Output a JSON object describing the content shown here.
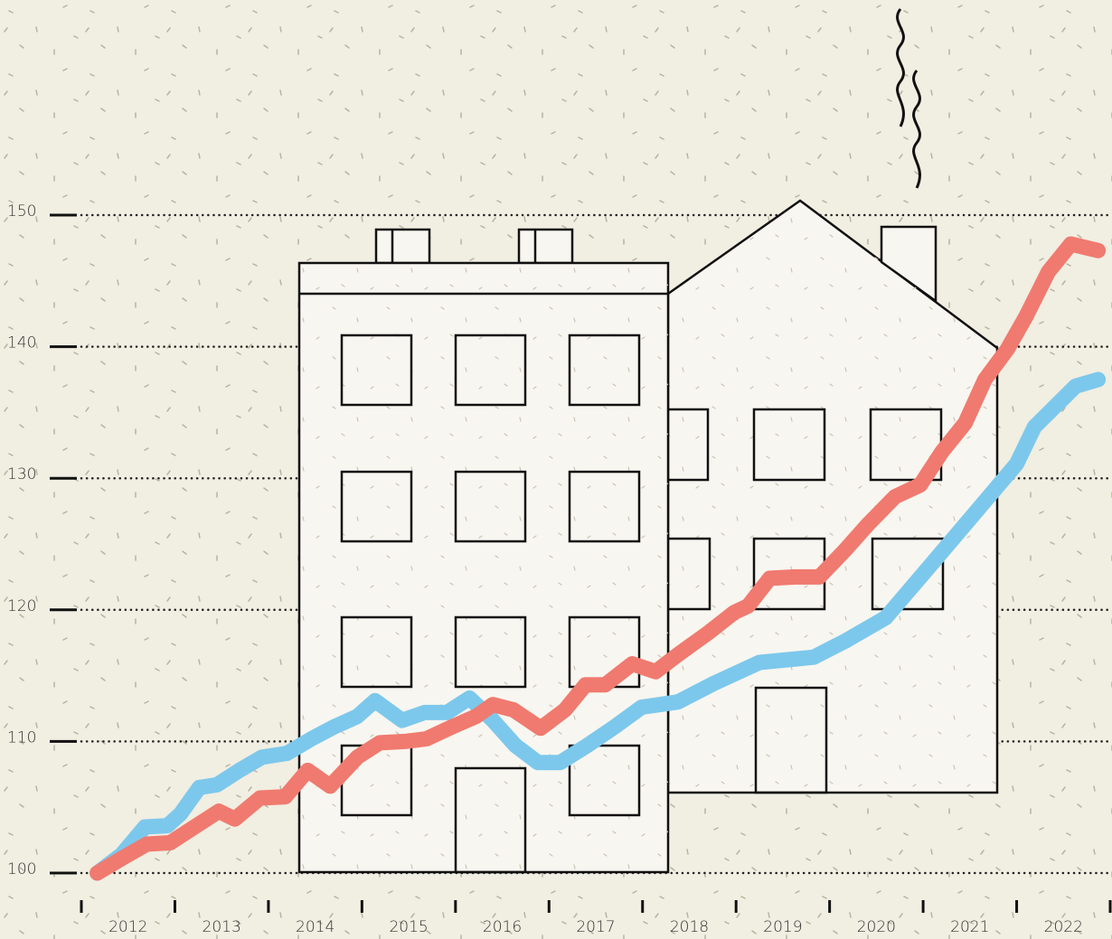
{
  "chart_data": {
    "type": "line",
    "xlim": [
      2012,
      2023
    ],
    "ylim": [
      100,
      150
    ],
    "yticks": [
      100,
      110,
      120,
      130,
      140,
      150
    ],
    "xticks": [
      {
        "value": 2012.5,
        "label": "2012"
      },
      {
        "value": 2013.5,
        "label": "2013"
      },
      {
        "value": 2014.5,
        "label": "2014"
      },
      {
        "value": 2015.5,
        "label": "2015"
      },
      {
        "value": 2016.5,
        "label": "2016"
      },
      {
        "value": 2017.5,
        "label": "2017"
      },
      {
        "value": 2018.5,
        "label": "2018"
      },
      {
        "value": 2019.5,
        "label": "2019"
      },
      {
        "value": 2020.5,
        "label": "2020"
      },
      {
        "value": 2021.5,
        "label": "2021"
      },
      {
        "value": 2022.5,
        "label": "2022"
      }
    ],
    "xminorticks": [
      2012,
      2013,
      2014,
      2015,
      2016,
      2017,
      2018,
      2019,
      2020,
      2021,
      2022,
      2023
    ],
    "grid": true,
    "series": [
      {
        "color": "#f07a6f",
        "x": [
          2012.17,
          2012.43,
          2012.7,
          2012.95,
          2013.21,
          2013.47,
          2013.64,
          2013.91,
          2014.18,
          2014.42,
          2014.66,
          2014.95,
          2015.19,
          2015.46,
          2015.69,
          2015.96,
          2016.22,
          2016.4,
          2016.62,
          2016.91,
          2017.17,
          2017.39,
          2017.6,
          2017.89,
          2018.14,
          2018.38,
          2018.71,
          2018.98,
          2019.13,
          2019.36,
          2019.63,
          2019.89,
          2020.16,
          2020.41,
          2020.7,
          2020.97,
          2021.2,
          2021.45,
          2021.66,
          2021.9,
          2022.1,
          2022.34,
          2022.58,
          2022.87
        ],
        "values": [
          100.0,
          101.1,
          102.2,
          102.3,
          103.5,
          104.7,
          104.1,
          105.7,
          105.8,
          107.8,
          106.6,
          108.8,
          109.9,
          110.0,
          110.2,
          111.1,
          111.9,
          112.8,
          112.4,
          111.0,
          112.4,
          114.3,
          114.3,
          115.9,
          115.3,
          116.6,
          118.3,
          119.8,
          120.3,
          122.4,
          122.5,
          122.5,
          124.5,
          126.5,
          128.6,
          129.5,
          132.0,
          134.2,
          137.5,
          139.8,
          142.3,
          145.7,
          147.8,
          147.3
        ]
      },
      {
        "color": "#7cc8ec",
        "x": [
          2012.17,
          2012.43,
          2012.68,
          2012.92,
          2013.06,
          2013.26,
          2013.45,
          2013.69,
          2013.93,
          2014.2,
          2014.46,
          2014.7,
          2014.95,
          2015.14,
          2015.43,
          2015.67,
          2015.91,
          2016.15,
          2016.4,
          2016.64,
          2016.88,
          2017.12,
          2017.41,
          2017.7,
          2017.99,
          2018.38,
          2018.76,
          2019.25,
          2019.83,
          2020.16,
          2020.6,
          2021.08,
          2021.57,
          2022.0,
          2022.19,
          2022.63,
          2022.87
        ],
        "values": [
          100.0,
          101.4,
          103.5,
          103.6,
          104.5,
          106.5,
          106.7,
          107.8,
          108.8,
          109.1,
          110.2,
          111.1,
          111.9,
          113.1,
          111.6,
          112.2,
          112.2,
          113.3,
          111.6,
          109.7,
          108.4,
          108.4,
          109.7,
          111.1,
          112.6,
          113.0,
          114.4,
          116.0,
          116.4,
          117.6,
          119.4,
          123.4,
          127.5,
          131.1,
          133.9,
          137.0,
          137.5
        ]
      }
    ]
  }
}
